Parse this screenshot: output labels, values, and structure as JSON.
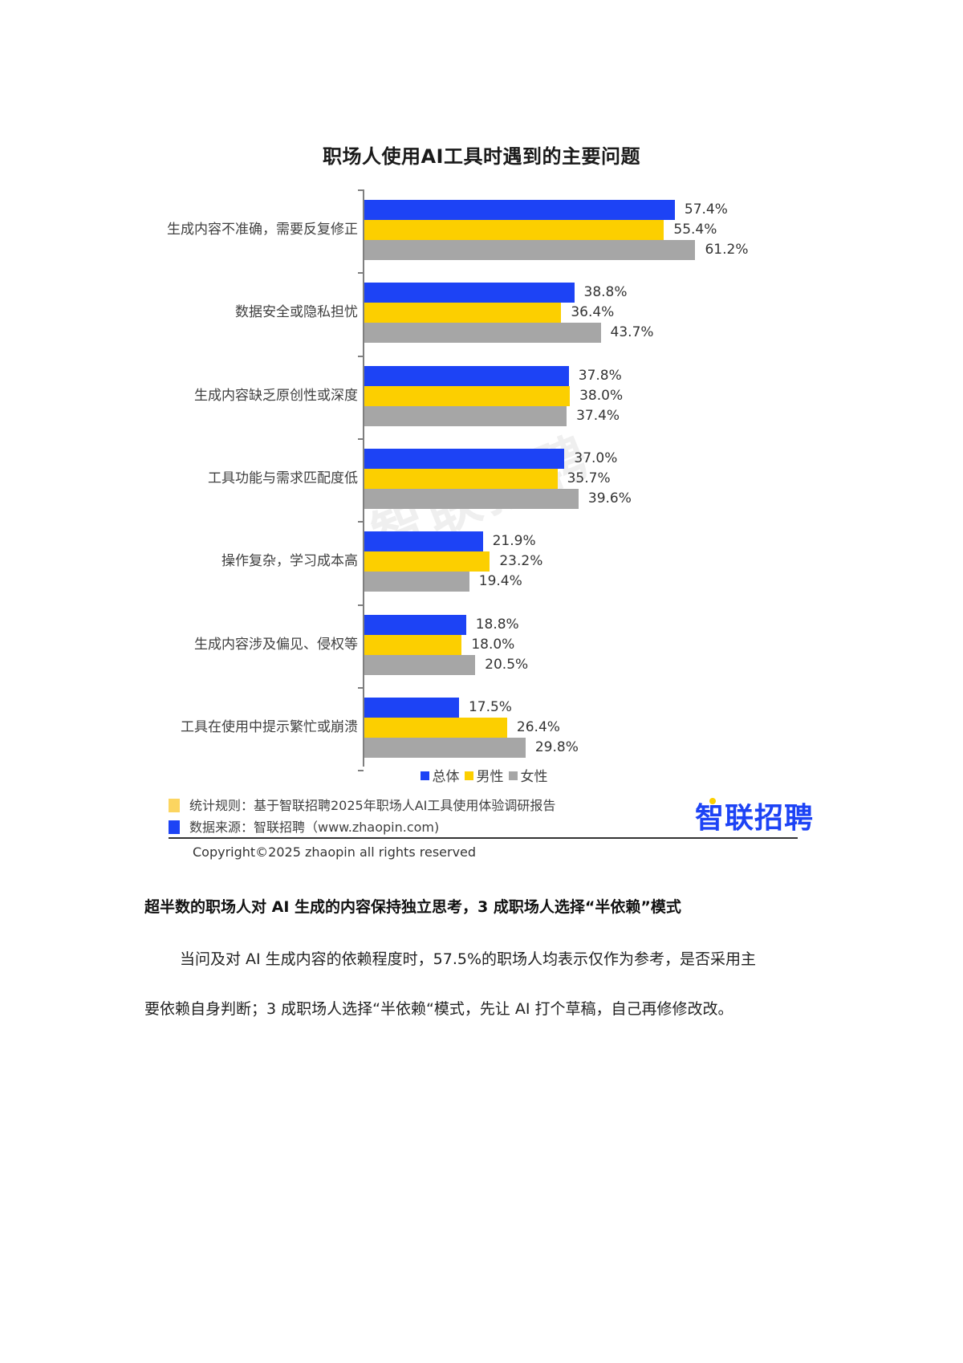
{
  "chart_data": {
    "type": "bar",
    "orientation": "horizontal",
    "title": "职场人使用AI工具时遇到的主要问题",
    "categories": [
      "生成内容不准确，需要反复修正",
      "数据安全或隐私担忧",
      "生成内容缺乏原创性或深度",
      "工具功能与需求匹配度低",
      "操作复杂，学习成本高",
      "生成内容涉及偏见、侵权等",
      "工具在使用中提示繁忙或崩溃"
    ],
    "series": [
      {
        "name": "总体",
        "color": "#1d43f5",
        "values": [
          57.4,
          38.8,
          37.8,
          37.0,
          21.9,
          18.8,
          17.5
        ]
      },
      {
        "name": "男性",
        "color": "#fccf00",
        "values": [
          55.4,
          36.4,
          38.0,
          35.7,
          23.2,
          18.0,
          26.4
        ]
      },
      {
        "name": "女性",
        "color": "#a6a6a6",
        "values": [
          61.2,
          43.7,
          37.4,
          39.6,
          19.4,
          20.5,
          29.8
        ]
      }
    ],
    "value_labels": [
      [
        "57.4%",
        "55.4%",
        "61.2%"
      ],
      [
        "38.8%",
        "36.4%",
        "43.7%"
      ],
      [
        "37.8%",
        "38.0%",
        "37.4%"
      ],
      [
        "37.0%",
        "35.7%",
        "39.6%"
      ],
      [
        "21.9%",
        "23.2%",
        "19.4%"
      ],
      [
        "18.8%",
        "18.0%",
        "20.5%"
      ],
      [
        "17.5%",
        "26.4%",
        "29.8%"
      ]
    ],
    "xlabel": "",
    "ylabel": "",
    "unit": "%",
    "grid": false,
    "legend_position": "bottom"
  },
  "legend": {
    "items": [
      {
        "label": "总体",
        "color": "#1d43f5"
      },
      {
        "label": "男性",
        "color": "#fccf00"
      },
      {
        "label": "女性",
        "color": "#a6a6a6"
      }
    ]
  },
  "watermark": "智联招聘",
  "notes": {
    "rule": {
      "text": "统计规则：基于智联招聘2025年职场人AI工具使用体验调研报告",
      "color": "#fcd560"
    },
    "source": {
      "text": "数据来源：智联招聘（www.zhaopin.com)",
      "color": "#1d43f5"
    }
  },
  "brand": {
    "logo_text": "智联招聘",
    "color": "#1d43f5"
  },
  "copyright": "Copyright©2025 zhaopin all rights reserved",
  "article": {
    "heading": "超半数的职场人对 AI 生成的内容保持独立思考，3 成职场人选择“半依赖”模式",
    "paragraph_lines": [
      "当问及对 AI 生成内容的依赖程度时，57.5%的职场人均表示仅作为参考，是否采用主",
      "要依赖自身判断；3 成职场人选择“半依赖“模式，先让 AI 打个草稿，自己再修修改改。"
    ]
  }
}
